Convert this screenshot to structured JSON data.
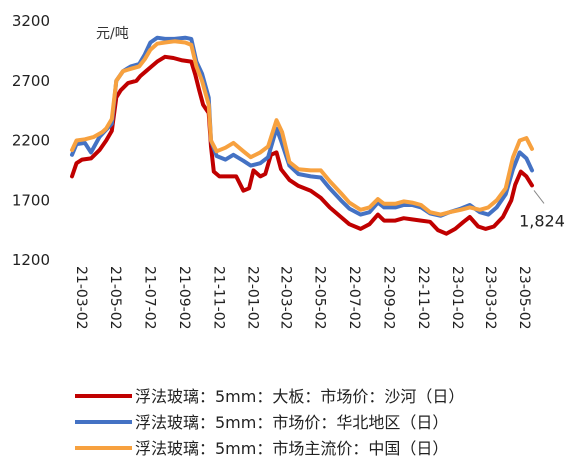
{
  "chart_data": {
    "type": "line",
    "unit_label": "元/吨",
    "ylim": [
      1200,
      3200
    ],
    "yticks": [
      1200,
      1700,
      2200,
      2700,
      3200
    ],
    "x_start": "2021-03-02",
    "x_end": "2023-06-01",
    "x_tick_labels": [
      "21-03-02",
      "21-05-02",
      "21-07-02",
      "21-09-02",
      "21-11-02",
      "22-01-02",
      "22-03-02",
      "22-05-02",
      "22-07-02",
      "22-09-02",
      "22-11-02",
      "23-01-02",
      "23-03-02",
      "23-05-02"
    ],
    "x_tick_dates": [
      "2021-03-02",
      "2021-05-02",
      "2021-07-02",
      "2021-09-02",
      "2021-11-02",
      "2022-01-02",
      "2022-03-02",
      "2022-05-02",
      "2022-07-02",
      "2022-09-02",
      "2022-11-02",
      "2023-01-02",
      "2023-03-02",
      "2023-05-02"
    ],
    "annotation": {
      "text": "1,824",
      "series_index": 0
    },
    "legend_position": "bottom",
    "series": [
      {
        "name": "浮法玻璃：5mm：大板：市场价：沙河（日）",
        "color": "#C00000",
        "points": [
          [
            "2021-03-02",
            1900
          ],
          [
            "2021-03-10",
            2010
          ],
          [
            "2021-03-20",
            2040
          ],
          [
            "2021-04-05",
            2050
          ],
          [
            "2021-04-20",
            2120
          ],
          [
            "2021-05-02",
            2200
          ],
          [
            "2021-05-12",
            2280
          ],
          [
            "2021-05-20",
            2560
          ],
          [
            "2021-05-28",
            2620
          ],
          [
            "2021-06-10",
            2680
          ],
          [
            "2021-06-25",
            2700
          ],
          [
            "2021-07-02",
            2740
          ],
          [
            "2021-07-12",
            2780
          ],
          [
            "2021-07-22",
            2820
          ],
          [
            "2021-08-01",
            2860
          ],
          [
            "2021-08-15",
            2900
          ],
          [
            "2021-08-30",
            2890
          ],
          [
            "2021-09-15",
            2870
          ],
          [
            "2021-10-01",
            2860
          ],
          [
            "2021-10-08",
            2750
          ],
          [
            "2021-10-15",
            2620
          ],
          [
            "2021-10-22",
            2500
          ],
          [
            "2021-11-01",
            2430
          ],
          [
            "2021-11-05",
            2150
          ],
          [
            "2021-11-10",
            1940
          ],
          [
            "2021-11-20",
            1900
          ],
          [
            "2021-12-05",
            1900
          ],
          [
            "2021-12-20",
            1900
          ],
          [
            "2022-01-02",
            1780
          ],
          [
            "2022-01-12",
            1800
          ],
          [
            "2022-01-20",
            1950
          ],
          [
            "2022-02-01",
            1900
          ],
          [
            "2022-02-10",
            1920
          ],
          [
            "2022-02-20",
            2080
          ],
          [
            "2022-03-02",
            2100
          ],
          [
            "2022-03-10",
            1960
          ],
          [
            "2022-03-25",
            1870
          ],
          [
            "2022-04-10",
            1820
          ],
          [
            "2022-05-02",
            1780
          ],
          [
            "2022-05-20",
            1720
          ],
          [
            "2022-06-05",
            1640
          ],
          [
            "2022-06-25",
            1560
          ],
          [
            "2022-07-10",
            1500
          ],
          [
            "2022-07-30",
            1460
          ],
          [
            "2022-08-15",
            1500
          ],
          [
            "2022-08-30",
            1580
          ],
          [
            "2022-09-10",
            1530
          ],
          [
            "2022-09-30",
            1530
          ],
          [
            "2022-10-15",
            1550
          ],
          [
            "2022-10-30",
            1540
          ],
          [
            "2022-11-15",
            1530
          ],
          [
            "2022-12-01",
            1520
          ],
          [
            "2022-12-15",
            1450
          ],
          [
            "2022-12-30",
            1420
          ],
          [
            "2023-01-15",
            1460
          ],
          [
            "2023-01-30",
            1520
          ],
          [
            "2023-02-10",
            1560
          ],
          [
            "2023-02-25",
            1480
          ],
          [
            "2023-03-10",
            1460
          ],
          [
            "2023-03-25",
            1480
          ],
          [
            "2023-04-10",
            1560
          ],
          [
            "2023-04-25",
            1700
          ],
          [
            "2023-05-02",
            1830
          ],
          [
            "2023-05-12",
            1940
          ],
          [
            "2023-05-22",
            1900
          ],
          [
            "2023-06-01",
            1824
          ]
        ]
      },
      {
        "name": "浮法玻璃：5mm：市场价：华北地区（日）",
        "color": "#4472C4",
        "points": [
          [
            "2021-03-02",
            2080
          ],
          [
            "2021-03-10",
            2170
          ],
          [
            "2021-03-25",
            2180
          ],
          [
            "2021-04-05",
            2100
          ],
          [
            "2021-04-20",
            2230
          ],
          [
            "2021-05-02",
            2290
          ],
          [
            "2021-05-12",
            2340
          ],
          [
            "2021-05-20",
            2700
          ],
          [
            "2021-06-01",
            2780
          ],
          [
            "2021-06-15",
            2820
          ],
          [
            "2021-06-30",
            2840
          ],
          [
            "2021-07-10",
            2920
          ],
          [
            "2021-07-20",
            3020
          ],
          [
            "2021-08-01",
            3060
          ],
          [
            "2021-08-15",
            3050
          ],
          [
            "2021-09-01",
            3050
          ],
          [
            "2021-09-20",
            3060
          ],
          [
            "2021-10-01",
            3050
          ],
          [
            "2021-10-10",
            2860
          ],
          [
            "2021-10-20",
            2760
          ],
          [
            "2021-11-01",
            2560
          ],
          [
            "2021-11-05",
            2200
          ],
          [
            "2021-11-15",
            2070
          ],
          [
            "2021-12-01",
            2040
          ],
          [
            "2021-12-15",
            2080
          ],
          [
            "2022-01-02",
            2030
          ],
          [
            "2022-01-15",
            1990
          ],
          [
            "2022-02-01",
            2010
          ],
          [
            "2022-02-15",
            2060
          ],
          [
            "2022-03-02",
            2300
          ],
          [
            "2022-03-10",
            2200
          ],
          [
            "2022-03-25",
            1990
          ],
          [
            "2022-04-10",
            1920
          ],
          [
            "2022-05-02",
            1900
          ],
          [
            "2022-05-20",
            1890
          ],
          [
            "2022-06-05",
            1800
          ],
          [
            "2022-06-25",
            1700
          ],
          [
            "2022-07-10",
            1630
          ],
          [
            "2022-07-30",
            1580
          ],
          [
            "2022-08-15",
            1600
          ],
          [
            "2022-08-30",
            1680
          ],
          [
            "2022-09-10",
            1640
          ],
          [
            "2022-09-30",
            1640
          ],
          [
            "2022-10-15",
            1660
          ],
          [
            "2022-10-30",
            1660
          ],
          [
            "2022-11-15",
            1640
          ],
          [
            "2022-12-01",
            1590
          ],
          [
            "2022-12-20",
            1570
          ],
          [
            "2023-01-05",
            1600
          ],
          [
            "2023-01-25",
            1630
          ],
          [
            "2023-02-10",
            1660
          ],
          [
            "2023-02-28",
            1600
          ],
          [
            "2023-03-15",
            1580
          ],
          [
            "2023-03-30",
            1640
          ],
          [
            "2023-04-15",
            1750
          ],
          [
            "2023-04-28",
            1960
          ],
          [
            "2023-05-10",
            2100
          ],
          [
            "2023-05-22",
            2050
          ],
          [
            "2023-06-01",
            1950
          ]
        ]
      },
      {
        "name": "浮法玻璃：5mm：市场主流价：中国（日）",
        "color": "#F7A13F",
        "points": [
          [
            "2021-03-02",
            2120
          ],
          [
            "2021-03-10",
            2200
          ],
          [
            "2021-03-25",
            2210
          ],
          [
            "2021-04-10",
            2230
          ],
          [
            "2021-04-25",
            2270
          ],
          [
            "2021-05-02",
            2300
          ],
          [
            "2021-05-12",
            2380
          ],
          [
            "2021-05-20",
            2700
          ],
          [
            "2021-06-01",
            2780
          ],
          [
            "2021-06-15",
            2800
          ],
          [
            "2021-06-30",
            2820
          ],
          [
            "2021-07-10",
            2880
          ],
          [
            "2021-07-20",
            2960
          ],
          [
            "2021-08-01",
            3010
          ],
          [
            "2021-08-15",
            3020
          ],
          [
            "2021-09-01",
            3030
          ],
          [
            "2021-09-20",
            3020
          ],
          [
            "2021-10-01",
            3000
          ],
          [
            "2021-10-10",
            2820
          ],
          [
            "2021-10-20",
            2700
          ],
          [
            "2021-11-01",
            2500
          ],
          [
            "2021-11-05",
            2200
          ],
          [
            "2021-11-15",
            2110
          ],
          [
            "2021-12-01",
            2140
          ],
          [
            "2021-12-15",
            2180
          ],
          [
            "2022-01-02",
            2110
          ],
          [
            "2022-01-15",
            2060
          ],
          [
            "2022-02-01",
            2100
          ],
          [
            "2022-02-15",
            2150
          ],
          [
            "2022-03-02",
            2370
          ],
          [
            "2022-03-12",
            2270
          ],
          [
            "2022-03-25",
            2020
          ],
          [
            "2022-04-10",
            1960
          ],
          [
            "2022-05-02",
            1950
          ],
          [
            "2022-05-20",
            1950
          ],
          [
            "2022-06-05",
            1860
          ],
          [
            "2022-06-25",
            1760
          ],
          [
            "2022-07-10",
            1680
          ],
          [
            "2022-07-30",
            1620
          ],
          [
            "2022-08-15",
            1640
          ],
          [
            "2022-08-30",
            1710
          ],
          [
            "2022-09-10",
            1670
          ],
          [
            "2022-09-30",
            1670
          ],
          [
            "2022-10-15",
            1690
          ],
          [
            "2022-10-30",
            1680
          ],
          [
            "2022-11-15",
            1660
          ],
          [
            "2022-12-01",
            1600
          ],
          [
            "2022-12-20",
            1580
          ],
          [
            "2023-01-05",
            1600
          ],
          [
            "2023-01-25",
            1620
          ],
          [
            "2023-02-10",
            1640
          ],
          [
            "2023-02-28",
            1620
          ],
          [
            "2023-03-15",
            1640
          ],
          [
            "2023-03-30",
            1700
          ],
          [
            "2023-04-15",
            1800
          ],
          [
            "2023-04-28",
            2060
          ],
          [
            "2023-05-10",
            2200
          ],
          [
            "2023-05-22",
            2220
          ],
          [
            "2023-06-01",
            2130
          ]
        ]
      }
    ]
  }
}
